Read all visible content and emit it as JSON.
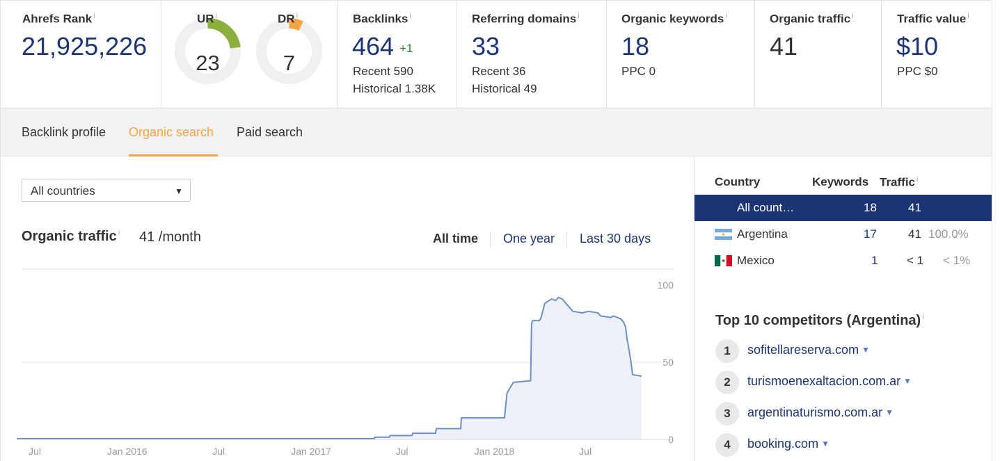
{
  "metrics": {
    "ahrefs_rank": {
      "label": "Ahrefs Rank",
      "value": "21,925,226"
    },
    "ur": {
      "label": "UR",
      "value": "23",
      "score": 23,
      "color": "#8cb03c"
    },
    "dr": {
      "label": "DR",
      "value": "7",
      "score": 7,
      "color": "#f5a445"
    },
    "backlinks": {
      "label": "Backlinks",
      "value": "464",
      "delta": "+1",
      "recent": "Recent 590",
      "historical": "Historical 1.38K"
    },
    "referring_domains": {
      "label": "Referring domains",
      "value": "33",
      "recent": "Recent 36",
      "historical": "Historical 49"
    },
    "organic_keywords": {
      "label": "Organic keywords",
      "value": "18",
      "ppc": "PPC 0"
    },
    "organic_traffic": {
      "label": "Organic traffic",
      "value": "41"
    },
    "traffic_value": {
      "label": "Traffic value",
      "value": "$10",
      "ppc": "PPC $0"
    },
    "info_glyph": "i"
  },
  "tabs": [
    {
      "label": "Backlink profile",
      "active": false
    },
    {
      "label": "Organic search",
      "active": true
    },
    {
      "label": "Paid search",
      "active": false
    }
  ],
  "filter": {
    "selected": "All countries",
    "caret": "▼"
  },
  "organic": {
    "title": "Organic traffic",
    "value": "41 /month",
    "ranges": [
      {
        "label": "All time",
        "active": true
      },
      {
        "label": "One year",
        "active": false
      },
      {
        "label": "Last 30 days",
        "active": false
      }
    ]
  },
  "chart_data": {
    "type": "line",
    "title": "Organic traffic",
    "y_ticks": [
      "100",
      "50",
      "0"
    ],
    "ylim": [
      0,
      100
    ],
    "xlim": [
      "2015-07-01",
      "2018-11-15"
    ],
    "x_ticks": [
      {
        "label": "Jul",
        "date": "2015-07-01"
      },
      {
        "label": "Jan 2016",
        "date": "2016-01-01"
      },
      {
        "label": "Jul",
        "date": "2016-07-01"
      },
      {
        "label": "Jan 2017",
        "date": "2017-01-01"
      },
      {
        "label": "Jul",
        "date": "2017-07-01"
      },
      {
        "label": "Jan 2018",
        "date": "2018-01-01"
      },
      {
        "label": "Jul",
        "date": "2018-07-01"
      }
    ],
    "grid": true,
    "series": [
      {
        "color": "#6b8fc7",
        "fill": "#eef2f8",
        "points": [
          [
            "2015-06-20",
            0.5
          ],
          [
            "2017-06-01",
            0.5
          ],
          [
            "2017-06-02",
            1.5
          ],
          [
            "2017-07-01",
            1.5
          ],
          [
            "2017-07-02",
            2.5
          ],
          [
            "2017-08-15",
            2.5
          ],
          [
            "2017-08-16",
            4
          ],
          [
            "2017-10-01",
            4
          ],
          [
            "2017-10-02",
            7
          ],
          [
            "2017-11-20",
            7
          ],
          [
            "2017-11-21",
            14
          ],
          [
            "2018-02-15",
            14
          ],
          [
            "2018-02-20",
            30
          ],
          [
            "2018-03-01",
            35
          ],
          [
            "2018-03-05",
            37
          ],
          [
            "2018-04-08",
            38
          ],
          [
            "2018-04-10",
            75
          ],
          [
            "2018-04-12",
            77
          ],
          [
            "2018-04-25",
            77
          ],
          [
            "2018-04-28",
            78
          ],
          [
            "2018-05-03",
            84
          ],
          [
            "2018-05-06",
            88
          ],
          [
            "2018-05-10",
            89
          ],
          [
            "2018-05-20",
            91
          ],
          [
            "2018-05-28",
            90
          ],
          [
            "2018-06-02",
            92
          ],
          [
            "2018-06-10",
            91
          ],
          [
            "2018-06-15",
            89
          ],
          [
            "2018-07-01",
            83
          ],
          [
            "2018-07-20",
            82
          ],
          [
            "2018-08-01",
            83
          ],
          [
            "2018-08-20",
            82
          ],
          [
            "2018-08-25",
            80
          ],
          [
            "2018-09-15",
            79
          ],
          [
            "2018-09-20",
            80
          ],
          [
            "2018-10-05",
            78
          ],
          [
            "2018-10-10",
            76
          ],
          [
            "2018-10-14",
            73
          ],
          [
            "2018-10-17",
            65
          ],
          [
            "2018-10-20",
            60
          ],
          [
            "2018-10-25",
            50
          ],
          [
            "2018-10-28",
            42
          ],
          [
            "2018-11-15",
            41
          ]
        ]
      }
    ]
  },
  "countries": {
    "headers": {
      "country": "Country",
      "keywords": "Keywords",
      "traffic": "Traffic"
    },
    "rows": [
      {
        "name": "All count…",
        "keywords": "18",
        "traffic": "41",
        "share": "",
        "selected": true,
        "flag": ""
      },
      {
        "name": "Argentina",
        "keywords": "17",
        "traffic": "41",
        "share": "100.0%",
        "selected": false,
        "flag": "argentina-flag-icon"
      },
      {
        "name": "Mexico",
        "keywords": "1",
        "traffic": "< 1",
        "share": "< 1%",
        "selected": false,
        "flag": "mexico-flag-icon"
      }
    ]
  },
  "competitors": {
    "title": "Top 10 competitors (Argentina)",
    "caret": "▼",
    "items": [
      {
        "rank": "1",
        "domain": "sofitellareserva.com"
      },
      {
        "rank": "2",
        "domain": "turismoenexaltacion.com.ar"
      },
      {
        "rank": "3",
        "domain": "argentinaturismo.com.ar"
      },
      {
        "rank": "4",
        "domain": "booking.com"
      }
    ]
  }
}
